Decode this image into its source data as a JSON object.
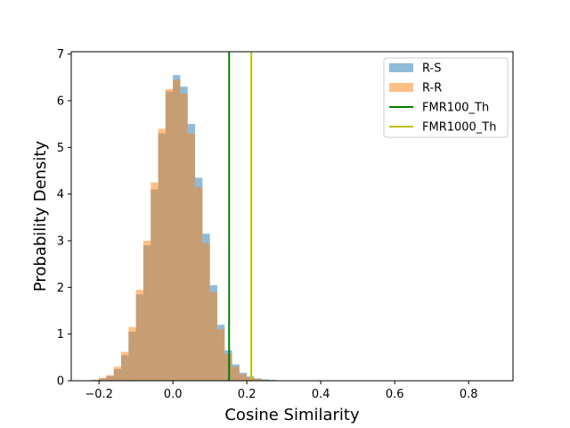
{
  "chart_data": {
    "type": "histogram",
    "title": "",
    "xlabel": "Cosine Similarity",
    "ylabel": "Probability Density",
    "xlim": [
      -0.275,
      0.92
    ],
    "ylim": [
      0,
      7.05
    ],
    "xticks": [
      -0.2,
      0.0,
      0.2,
      0.4,
      0.6,
      0.8
    ],
    "xtick_labels": [
      "−0.2",
      "0.0",
      "0.2",
      "0.4",
      "0.6",
      "0.8"
    ],
    "yticks": [
      0,
      1,
      2,
      3,
      4,
      5,
      6,
      7
    ],
    "grid": false,
    "legend_placement": "upper-right",
    "bin_width": 0.02,
    "bin_centers": [
      -0.23,
      -0.21,
      -0.19,
      -0.17,
      -0.15,
      -0.13,
      -0.11,
      -0.09,
      -0.07,
      -0.05,
      -0.03,
      -0.01,
      0.01,
      0.03,
      0.05,
      0.07,
      0.09,
      0.11,
      0.13,
      0.15,
      0.17,
      0.19,
      0.21,
      0.23,
      0.25,
      0.27,
      0.29,
      0.31,
      0.33,
      0.35
    ],
    "series": [
      {
        "name": "R-S",
        "kind": "histogram",
        "color": "#1f77b4",
        "alpha": 0.5,
        "values": [
          0.01,
          0.02,
          0.05,
          0.1,
          0.25,
          0.55,
          1.05,
          1.85,
          2.9,
          4.1,
          5.3,
          6.2,
          6.55,
          6.3,
          5.5,
          4.35,
          3.15,
          2.05,
          1.2,
          0.65,
          0.35,
          0.17,
          0.09,
          0.05,
          0.03,
          0.02,
          0.01,
          0.005,
          0.003,
          0.002
        ]
      },
      {
        "name": "R-R",
        "kind": "histogram",
        "color": "#ff7f0e",
        "alpha": 0.5,
        "values": [
          0.01,
          0.02,
          0.06,
          0.12,
          0.3,
          0.62,
          1.15,
          1.95,
          3.0,
          4.25,
          5.4,
          6.25,
          6.45,
          6.15,
          5.3,
          4.15,
          2.95,
          1.9,
          1.1,
          0.58,
          0.3,
          0.14,
          0.07,
          0.04,
          0.02,
          0.01,
          0.005,
          0.003,
          0.002,
          0.001
        ]
      },
      {
        "name": "FMR100_Th",
        "kind": "vline",
        "color": "#008000",
        "x": 0.152
      },
      {
        "name": "FMR1000_Th",
        "kind": "vline",
        "color": "#bfbf00",
        "x": 0.212
      }
    ]
  }
}
